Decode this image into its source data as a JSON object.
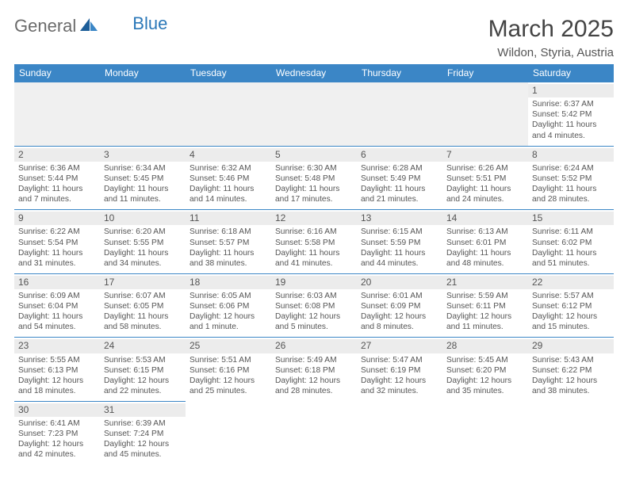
{
  "brand": {
    "part1": "General",
    "part2": "Blue"
  },
  "title": "March 2025",
  "location": "Wildon, Styria, Austria",
  "colors": {
    "header_bg": "#3b86c6",
    "header_text": "#ffffff",
    "rule": "#3b86c6",
    "daynum_bg": "#ececec",
    "blank_bg": "#f0f0f0",
    "logo_gray": "#6b6b6b",
    "logo_blue": "#2b78b8"
  },
  "weekdays": [
    "Sunday",
    "Monday",
    "Tuesday",
    "Wednesday",
    "Thursday",
    "Friday",
    "Saturday"
  ],
  "weeks": [
    [
      null,
      null,
      null,
      null,
      null,
      null,
      {
        "d": "1",
        "sr": "Sunrise: 6:37 AM",
        "ss": "Sunset: 5:42 PM",
        "dl1": "Daylight: 11 hours",
        "dl2": "and 4 minutes."
      }
    ],
    [
      {
        "d": "2",
        "sr": "Sunrise: 6:36 AM",
        "ss": "Sunset: 5:44 PM",
        "dl1": "Daylight: 11 hours",
        "dl2": "and 7 minutes."
      },
      {
        "d": "3",
        "sr": "Sunrise: 6:34 AM",
        "ss": "Sunset: 5:45 PM",
        "dl1": "Daylight: 11 hours",
        "dl2": "and 11 minutes."
      },
      {
        "d": "4",
        "sr": "Sunrise: 6:32 AM",
        "ss": "Sunset: 5:46 PM",
        "dl1": "Daylight: 11 hours",
        "dl2": "and 14 minutes."
      },
      {
        "d": "5",
        "sr": "Sunrise: 6:30 AM",
        "ss": "Sunset: 5:48 PM",
        "dl1": "Daylight: 11 hours",
        "dl2": "and 17 minutes."
      },
      {
        "d": "6",
        "sr": "Sunrise: 6:28 AM",
        "ss": "Sunset: 5:49 PM",
        "dl1": "Daylight: 11 hours",
        "dl2": "and 21 minutes."
      },
      {
        "d": "7",
        "sr": "Sunrise: 6:26 AM",
        "ss": "Sunset: 5:51 PM",
        "dl1": "Daylight: 11 hours",
        "dl2": "and 24 minutes."
      },
      {
        "d": "8",
        "sr": "Sunrise: 6:24 AM",
        "ss": "Sunset: 5:52 PM",
        "dl1": "Daylight: 11 hours",
        "dl2": "and 28 minutes."
      }
    ],
    [
      {
        "d": "9",
        "sr": "Sunrise: 6:22 AM",
        "ss": "Sunset: 5:54 PM",
        "dl1": "Daylight: 11 hours",
        "dl2": "and 31 minutes."
      },
      {
        "d": "10",
        "sr": "Sunrise: 6:20 AM",
        "ss": "Sunset: 5:55 PM",
        "dl1": "Daylight: 11 hours",
        "dl2": "and 34 minutes."
      },
      {
        "d": "11",
        "sr": "Sunrise: 6:18 AM",
        "ss": "Sunset: 5:57 PM",
        "dl1": "Daylight: 11 hours",
        "dl2": "and 38 minutes."
      },
      {
        "d": "12",
        "sr": "Sunrise: 6:16 AM",
        "ss": "Sunset: 5:58 PM",
        "dl1": "Daylight: 11 hours",
        "dl2": "and 41 minutes."
      },
      {
        "d": "13",
        "sr": "Sunrise: 6:15 AM",
        "ss": "Sunset: 5:59 PM",
        "dl1": "Daylight: 11 hours",
        "dl2": "and 44 minutes."
      },
      {
        "d": "14",
        "sr": "Sunrise: 6:13 AM",
        "ss": "Sunset: 6:01 PM",
        "dl1": "Daylight: 11 hours",
        "dl2": "and 48 minutes."
      },
      {
        "d": "15",
        "sr": "Sunrise: 6:11 AM",
        "ss": "Sunset: 6:02 PM",
        "dl1": "Daylight: 11 hours",
        "dl2": "and 51 minutes."
      }
    ],
    [
      {
        "d": "16",
        "sr": "Sunrise: 6:09 AM",
        "ss": "Sunset: 6:04 PM",
        "dl1": "Daylight: 11 hours",
        "dl2": "and 54 minutes."
      },
      {
        "d": "17",
        "sr": "Sunrise: 6:07 AM",
        "ss": "Sunset: 6:05 PM",
        "dl1": "Daylight: 11 hours",
        "dl2": "and 58 minutes."
      },
      {
        "d": "18",
        "sr": "Sunrise: 6:05 AM",
        "ss": "Sunset: 6:06 PM",
        "dl1": "Daylight: 12 hours",
        "dl2": "and 1 minute."
      },
      {
        "d": "19",
        "sr": "Sunrise: 6:03 AM",
        "ss": "Sunset: 6:08 PM",
        "dl1": "Daylight: 12 hours",
        "dl2": "and 5 minutes."
      },
      {
        "d": "20",
        "sr": "Sunrise: 6:01 AM",
        "ss": "Sunset: 6:09 PM",
        "dl1": "Daylight: 12 hours",
        "dl2": "and 8 minutes."
      },
      {
        "d": "21",
        "sr": "Sunrise: 5:59 AM",
        "ss": "Sunset: 6:11 PM",
        "dl1": "Daylight: 12 hours",
        "dl2": "and 11 minutes."
      },
      {
        "d": "22",
        "sr": "Sunrise: 5:57 AM",
        "ss": "Sunset: 6:12 PM",
        "dl1": "Daylight: 12 hours",
        "dl2": "and 15 minutes."
      }
    ],
    [
      {
        "d": "23",
        "sr": "Sunrise: 5:55 AM",
        "ss": "Sunset: 6:13 PM",
        "dl1": "Daylight: 12 hours",
        "dl2": "and 18 minutes."
      },
      {
        "d": "24",
        "sr": "Sunrise: 5:53 AM",
        "ss": "Sunset: 6:15 PM",
        "dl1": "Daylight: 12 hours",
        "dl2": "and 22 minutes."
      },
      {
        "d": "25",
        "sr": "Sunrise: 5:51 AM",
        "ss": "Sunset: 6:16 PM",
        "dl1": "Daylight: 12 hours",
        "dl2": "and 25 minutes."
      },
      {
        "d": "26",
        "sr": "Sunrise: 5:49 AM",
        "ss": "Sunset: 6:18 PM",
        "dl1": "Daylight: 12 hours",
        "dl2": "and 28 minutes."
      },
      {
        "d": "27",
        "sr": "Sunrise: 5:47 AM",
        "ss": "Sunset: 6:19 PM",
        "dl1": "Daylight: 12 hours",
        "dl2": "and 32 minutes."
      },
      {
        "d": "28",
        "sr": "Sunrise: 5:45 AM",
        "ss": "Sunset: 6:20 PM",
        "dl1": "Daylight: 12 hours",
        "dl2": "and 35 minutes."
      },
      {
        "d": "29",
        "sr": "Sunrise: 5:43 AM",
        "ss": "Sunset: 6:22 PM",
        "dl1": "Daylight: 12 hours",
        "dl2": "and 38 minutes."
      }
    ],
    [
      {
        "d": "30",
        "sr": "Sunrise: 6:41 AM",
        "ss": "Sunset: 7:23 PM",
        "dl1": "Daylight: 12 hours",
        "dl2": "and 42 minutes."
      },
      {
        "d": "31",
        "sr": "Sunrise: 6:39 AM",
        "ss": "Sunset: 7:24 PM",
        "dl1": "Daylight: 12 hours",
        "dl2": "and 45 minutes."
      },
      null,
      null,
      null,
      null,
      null
    ]
  ]
}
